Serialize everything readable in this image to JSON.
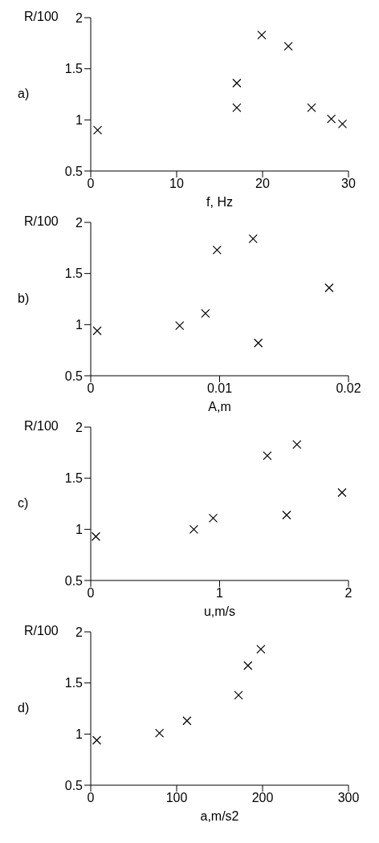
{
  "chart_data": [
    {
      "type": "scatter",
      "xlabel": "f, Hz",
      "ylabel": "R/100",
      "annotations": [
        "a)"
      ],
      "marker": "cross",
      "legend": false,
      "grid": false,
      "xlim": [
        0,
        30
      ],
      "xticks": [
        0,
        10,
        20,
        30
      ],
      "ylim": [
        0.5,
        2
      ],
      "yticks": [
        0.5,
        1,
        1.5,
        2
      ],
      "series": [
        {
          "color": "#000000",
          "x": [
            0.8,
            17,
            17,
            19.9,
            23,
            25.7,
            28,
            29.3
          ],
          "values": [
            0.9,
            1.36,
            1.12,
            1.83,
            1.72,
            1.12,
            1.01,
            0.96
          ]
        }
      ]
    },
    {
      "type": "scatter",
      "xlabel": "A,m",
      "ylabel": "R/100",
      "annotations": [
        "b)"
      ],
      "marker": "cross",
      "legend": false,
      "grid": false,
      "xlim": [
        0,
        0.02
      ],
      "xticks": [
        0,
        0.01,
        0.02
      ],
      "ylim": [
        0.5,
        2
      ],
      "yticks": [
        0.5,
        1,
        1.5,
        2
      ],
      "series": [
        {
          "color": "#000000",
          "x": [
            0.0005,
            0.0069,
            0.0089,
            0.0098,
            0.0126,
            0.013,
            0.0185
          ],
          "values": [
            0.94,
            0.99,
            1.11,
            1.73,
            1.84,
            0.82,
            1.36
          ]
        }
      ]
    },
    {
      "type": "scatter",
      "xlabel": "u,m/s",
      "ylabel": "R/100",
      "annotations": [
        "c)"
      ],
      "marker": "cross",
      "legend": false,
      "grid": false,
      "xlim": [
        0,
        2
      ],
      "xticks": [
        0,
        1,
        2
      ],
      "ylim": [
        0.5,
        2
      ],
      "yticks": [
        0.5,
        1,
        1.5,
        2
      ],
      "series": [
        {
          "color": "#000000",
          "x": [
            0.04,
            0.8,
            0.95,
            1.37,
            1.6,
            1.52,
            1.95
          ],
          "values": [
            0.93,
            1.0,
            1.11,
            1.72,
            1.83,
            1.14,
            1.36
          ]
        }
      ]
    },
    {
      "type": "scatter",
      "xlabel": "a,m/s2",
      "ylabel": "R/100",
      "annotations": [
        "d)"
      ],
      "marker": "cross",
      "legend": false,
      "grid": false,
      "xlim": [
        0,
        300
      ],
      "xticks": [
        0,
        100,
        200,
        300
      ],
      "ylim": [
        0.5,
        2
      ],
      "yticks": [
        0.5,
        1,
        1.5,
        2
      ],
      "series": [
        {
          "color": "#000000",
          "x": [
            7,
            80,
            112,
            172,
            183,
            198
          ],
          "values": [
            0.94,
            1.01,
            1.13,
            1.38,
            1.67,
            1.83
          ]
        }
      ]
    }
  ]
}
